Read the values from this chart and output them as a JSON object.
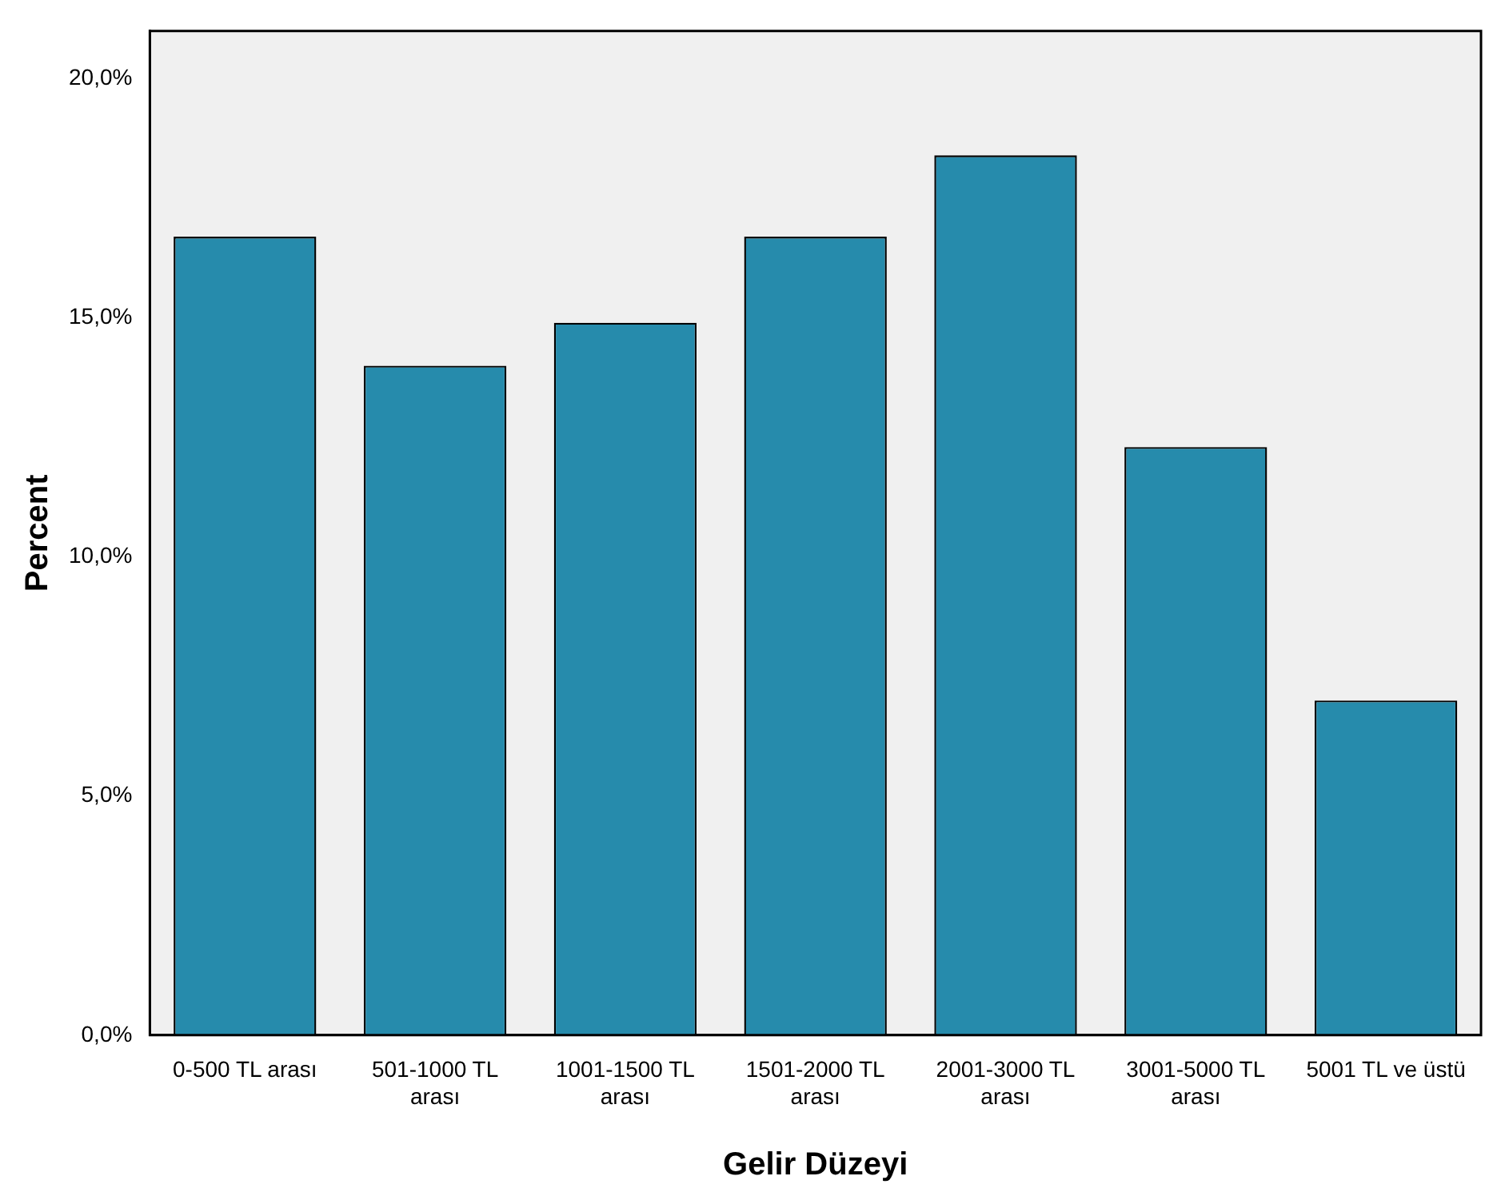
{
  "chart_data": {
    "type": "bar",
    "xlabel": "Gelir Düzeyi",
    "ylabel": "Percent",
    "categories": [
      "0-500 TL arası",
      "501-1000 TL arası",
      "1001-1500 TL arası",
      "1501-2000 TL arası",
      "2001-3000 TL arası",
      "3001-5000 TL arası",
      "5001 TL ve üstü"
    ],
    "values": [
      16.7,
      14.0,
      14.9,
      16.7,
      18.4,
      12.3,
      7.0
    ],
    "color": "#268bac",
    "ylim": [
      0,
      21
    ],
    "yticks": [
      {
        "value": 0,
        "label": "0,0%"
      },
      {
        "value": 5,
        "label": "5,0%"
      },
      {
        "value": 10,
        "label": "10,0%"
      },
      {
        "value": 15,
        "label": "15,0%"
      },
      {
        "value": 20,
        "label": "20,0%"
      }
    ],
    "grid": false,
    "legend": false
  }
}
